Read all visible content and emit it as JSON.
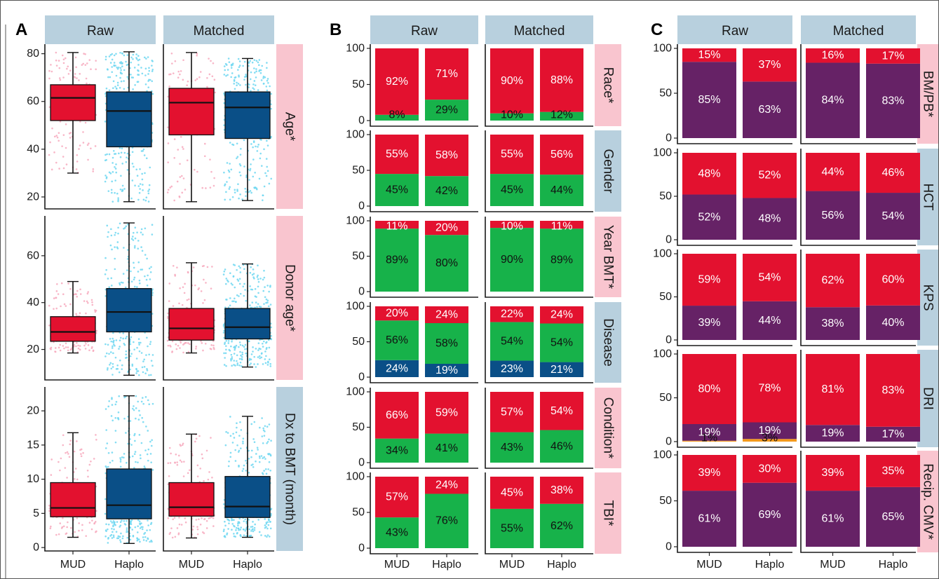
{
  "chart_data": {
    "type": "composite",
    "colors": {
      "mud": "#e3112f",
      "haplo": "#0a4f87",
      "mud_points": "#f7a9bd",
      "haplo_points": "#6fd7f1",
      "green": "#17b24a",
      "blue": "#0a4f87",
      "purple": "#662266",
      "orange": "#f49a1c",
      "strip_blue": "#b8d0de",
      "strip_pink": "#f9c5cf"
    },
    "categories": [
      "MUD",
      "Haplo"
    ],
    "columns": [
      "Raw",
      "Matched"
    ],
    "panels": [
      {
        "letter": "A",
        "type": "boxplot",
        "rows": [
          {
            "name": "Age*",
            "strip": "pink",
            "ylim": [
              15,
              84
            ],
            "ticks": [
              20,
              40,
              60,
              80
            ],
            "raw": [
              {
                "group": "MUD",
                "min": 30,
                "q1": 52,
                "median": 61.5,
                "q3": 67,
                "max": 80.5
              },
              {
                "group": "Haplo",
                "min": 18,
                "q1": 41,
                "median": 56,
                "q3": 64,
                "max": 80.8
              }
            ],
            "matched": [
              {
                "group": "MUD",
                "min": 18,
                "q1": 46,
                "median": 59.5,
                "q3": 65.5,
                "max": 80.5
              },
              {
                "group": "Haplo",
                "min": 18.5,
                "q1": 44.5,
                "median": 57.5,
                "q3": 64,
                "max": 78
              }
            ]
          },
          {
            "name": "Donor age*",
            "strip": "pink",
            "ylim": [
              7,
              77
            ],
            "ticks": [
              20,
              40,
              60
            ],
            "raw": [
              {
                "group": "MUD",
                "min": 18.5,
                "q1": 23.5,
                "median": 27.5,
                "q3": 34,
                "max": 49
              },
              {
                "group": "Haplo",
                "min": 9,
                "q1": 27.5,
                "median": 36,
                "q3": 46,
                "max": 74
              }
            ],
            "matched": [
              {
                "group": "MUD",
                "min": 18.5,
                "q1": 24,
                "median": 29,
                "q3": 37.5,
                "max": 57
              },
              {
                "group": "Haplo",
                "min": 12.5,
                "q1": 24.5,
                "median": 29.5,
                "q3": 37.5,
                "max": 56.5
              }
            ]
          },
          {
            "name": "Dx to BMT (month)",
            "strip": "blue",
            "ylim": [
              -0.5,
              23.5
            ],
            "ticks": [
              0,
              5,
              10,
              15,
              20
            ],
            "raw": [
              {
                "group": "MUD",
                "min": 1.5,
                "q1": 4.5,
                "median": 5.8,
                "q3": 9.5,
                "max": 16.8
              },
              {
                "group": "Haplo",
                "min": 0.6,
                "q1": 4.2,
                "median": 6.2,
                "q3": 11.5,
                "max": 22.2
              }
            ],
            "matched": [
              {
                "group": "MUD",
                "min": 1.4,
                "q1": 4.6,
                "median": 5.9,
                "q3": 9.5,
                "max": 16.6
              },
              {
                "group": "Haplo",
                "min": 1.5,
                "q1": 4.4,
                "median": 6.0,
                "q3": 10.4,
                "max": 19.2
              }
            ]
          }
        ]
      },
      {
        "letter": "B",
        "type": "stacked_bar",
        "ticks": [
          0,
          50,
          100
        ],
        "rows": [
          {
            "name": "Race*",
            "strip": "pink",
            "raw": [
              [
                {
                  "v": 8,
                  "c": "green"
                },
                {
                  "v": 92,
                  "c": "red"
                }
              ],
              [
                {
                  "v": 29,
                  "c": "green"
                },
                {
                  "v": 71,
                  "c": "red"
                }
              ]
            ],
            "matched": [
              [
                {
                  "v": 10,
                  "c": "green"
                },
                {
                  "v": 90,
                  "c": "red"
                }
              ],
              [
                {
                  "v": 12,
                  "c": "green"
                },
                {
                  "v": 88,
                  "c": "red"
                }
              ]
            ]
          },
          {
            "name": "Gender",
            "strip": "blue",
            "raw": [
              [
                {
                  "v": 45,
                  "c": "green"
                },
                {
                  "v": 55,
                  "c": "red"
                }
              ],
              [
                {
                  "v": 42,
                  "c": "green"
                },
                {
                  "v": 58,
                  "c": "red"
                }
              ]
            ],
            "matched": [
              [
                {
                  "v": 45,
                  "c": "green"
                },
                {
                  "v": 55,
                  "c": "red"
                }
              ],
              [
                {
                  "v": 44,
                  "c": "green"
                },
                {
                  "v": 56,
                  "c": "red"
                }
              ]
            ]
          },
          {
            "name": "Year BMT*",
            "strip": "pink",
            "raw": [
              [
                {
                  "v": 89,
                  "c": "green"
                },
                {
                  "v": 11,
                  "c": "red"
                }
              ],
              [
                {
                  "v": 80,
                  "c": "green"
                },
                {
                  "v": 20,
                  "c": "red"
                }
              ]
            ],
            "matched": [
              [
                {
                  "v": 90,
                  "c": "green"
                },
                {
                  "v": 10,
                  "c": "red"
                }
              ],
              [
                {
                  "v": 89,
                  "c": "green"
                },
                {
                  "v": 11,
                  "c": "red"
                }
              ]
            ]
          },
          {
            "name": "Disease",
            "strip": "blue",
            "raw": [
              [
                {
                  "v": 24,
                  "c": "blue"
                },
                {
                  "v": 56,
                  "c": "green"
                },
                {
                  "v": 20,
                  "c": "red"
                }
              ],
              [
                {
                  "v": 19,
                  "c": "blue"
                },
                {
                  "v": 58,
                  "c": "green"
                },
                {
                  "v": 24,
                  "c": "red"
                }
              ]
            ],
            "matched": [
              [
                {
                  "v": 23,
                  "c": "blue"
                },
                {
                  "v": 54,
                  "c": "green"
                },
                {
                  "v": 22,
                  "c": "red"
                }
              ],
              [
                {
                  "v": 21,
                  "c": "blue"
                },
                {
                  "v": 54,
                  "c": "green"
                },
                {
                  "v": 24,
                  "c": "red"
                }
              ]
            ]
          },
          {
            "name": "Condition*",
            "strip": "pink",
            "raw": [
              [
                {
                  "v": 34,
                  "c": "green"
                },
                {
                  "v": 66,
                  "c": "red"
                }
              ],
              [
                {
                  "v": 41,
                  "c": "green"
                },
                {
                  "v": 59,
                  "c": "red"
                }
              ]
            ],
            "matched": [
              [
                {
                  "v": 43,
                  "c": "green"
                },
                {
                  "v": 57,
                  "c": "red"
                }
              ],
              [
                {
                  "v": 46,
                  "c": "green"
                },
                {
                  "v": 54,
                  "c": "red"
                }
              ]
            ]
          },
          {
            "name": "TBI*",
            "strip": "pink",
            "raw": [
              [
                {
                  "v": 43,
                  "c": "green"
                },
                {
                  "v": 57,
                  "c": "red"
                }
              ],
              [
                {
                  "v": 76,
                  "c": "green"
                },
                {
                  "v": 24,
                  "c": "red"
                }
              ]
            ],
            "matched": [
              [
                {
                  "v": 55,
                  "c": "green"
                },
                {
                  "v": 45,
                  "c": "red"
                }
              ],
              [
                {
                  "v": 62,
                  "c": "green"
                },
                {
                  "v": 38,
                  "c": "red"
                }
              ]
            ]
          }
        ]
      },
      {
        "letter": "C",
        "type": "stacked_bar",
        "ticks": [
          0,
          50,
          100
        ],
        "rows": [
          {
            "name": "BM/PB*",
            "strip": "pink",
            "raw": [
              [
                {
                  "v": 85,
                  "c": "purple"
                },
                {
                  "v": 15,
                  "c": "red"
                }
              ],
              [
                {
                  "v": 63,
                  "c": "purple"
                },
                {
                  "v": 37,
                  "c": "red"
                }
              ]
            ],
            "matched": [
              [
                {
                  "v": 84,
                  "c": "purple"
                },
                {
                  "v": 16,
                  "c": "red"
                }
              ],
              [
                {
                  "v": 83,
                  "c": "purple"
                },
                {
                  "v": 17,
                  "c": "red"
                }
              ]
            ]
          },
          {
            "name": "HCT",
            "strip": "blue",
            "raw": [
              [
                {
                  "v": 52,
                  "c": "purple"
                },
                {
                  "v": 48,
                  "c": "red"
                }
              ],
              [
                {
                  "v": 48,
                  "c": "purple"
                },
                {
                  "v": 52,
                  "c": "red"
                }
              ]
            ],
            "matched": [
              [
                {
                  "v": 56,
                  "c": "purple"
                },
                {
                  "v": 44,
                  "c": "red"
                }
              ],
              [
                {
                  "v": 54,
                  "c": "purple"
                },
                {
                  "v": 46,
                  "c": "red"
                }
              ]
            ]
          },
          {
            "name": "KPS",
            "strip": "blue",
            "raw": [
              [
                {
                  "v": 39,
                  "c": "purple"
                },
                {
                  "v": 59,
                  "c": "red"
                }
              ],
              [
                {
                  "v": 44,
                  "c": "purple"
                },
                {
                  "v": 54,
                  "c": "red"
                }
              ]
            ],
            "matched": [
              [
                {
                  "v": 38,
                  "c": "purple"
                },
                {
                  "v": 62,
                  "c": "red"
                }
              ],
              [
                {
                  "v": 40,
                  "c": "purple"
                },
                {
                  "v": 60,
                  "c": "red"
                }
              ]
            ]
          },
          {
            "name": "DRI",
            "strip": "blue",
            "raw": [
              [
                {
                  "v": 1,
                  "c": "orange"
                },
                {
                  "v": 19,
                  "c": "purple"
                },
                {
                  "v": 80,
                  "c": "red"
                }
              ],
              [
                {
                  "v": 3,
                  "c": "orange"
                },
                {
                  "v": 19,
                  "c": "purple"
                },
                {
                  "v": 78,
                  "c": "red"
                }
              ]
            ],
            "matched": [
              [
                {
                  "v": 19,
                  "c": "purple"
                },
                {
                  "v": 81,
                  "c": "red"
                }
              ],
              [
                {
                  "v": 17,
                  "c": "purple"
                },
                {
                  "v": 83,
                  "c": "red"
                }
              ]
            ]
          },
          {
            "name": "Recip. CMV*",
            "strip": "pink",
            "raw": [
              [
                {
                  "v": 61,
                  "c": "purple"
                },
                {
                  "v": 39,
                  "c": "red"
                }
              ],
              [
                {
                  "v": 69,
                  "c": "purple"
                },
                {
                  "v": 30,
                  "c": "red"
                }
              ]
            ],
            "matched": [
              [
                {
                  "v": 61,
                  "c": "purple"
                },
                {
                  "v": 39,
                  "c": "red"
                }
              ],
              [
                {
                  "v": 65,
                  "c": "purple"
                },
                {
                  "v": 35,
                  "c": "red"
                }
              ]
            ]
          }
        ]
      }
    ]
  }
}
